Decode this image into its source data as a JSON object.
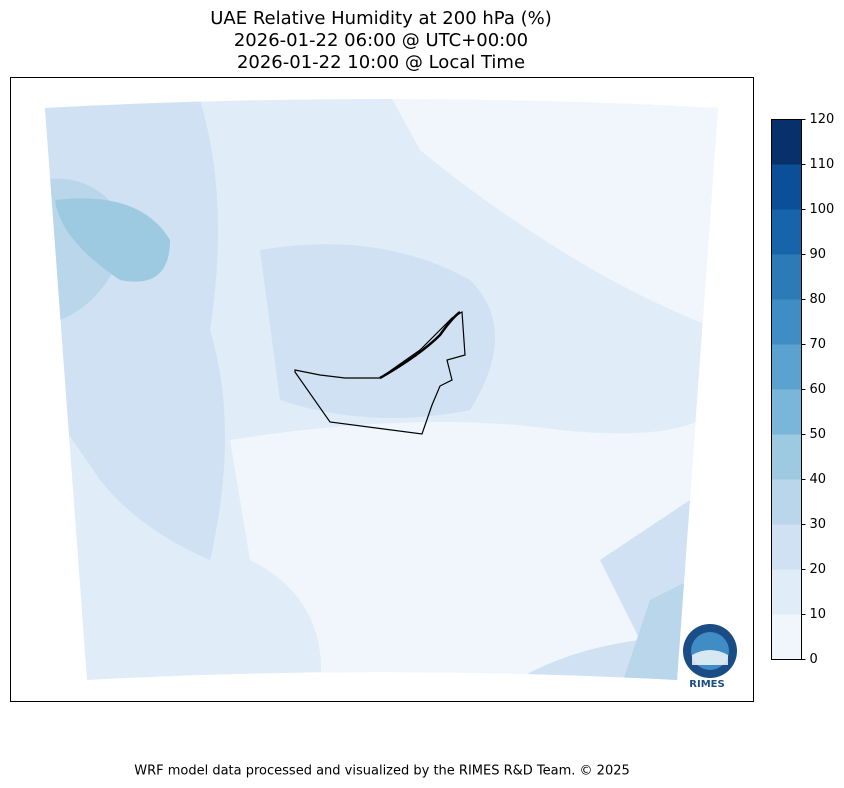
{
  "title": [
    "UAE Relative Humidity at 200 hPa (%)",
    "2026-01-22 06:00 @ UTC+00:00",
    "2026-01-22 10:00 @ Local Time"
  ],
  "colorbar": {
    "lim": [
      0,
      120
    ],
    "ticks": [
      0,
      10,
      20,
      30,
      40,
      50,
      60,
      70,
      80,
      90,
      100,
      110,
      120
    ],
    "colors": [
      "#f0f6fc",
      "#e0ecf7",
      "#cfe1f2",
      "#b9d6ea",
      "#9dcae1",
      "#7ab6d9",
      "#5ba2d0",
      "#3f8dc4",
      "#2c7bb6",
      "#1764ab",
      "#0a4f97",
      "#08306b"
    ]
  },
  "logo": "RIMES",
  "footer": "WRF model data processed and visualized by the RIMES R&D Team. © 2025"
}
